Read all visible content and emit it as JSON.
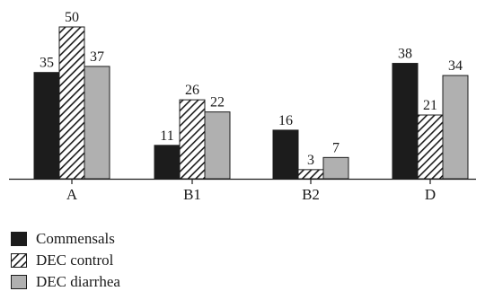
{
  "chart_data": {
    "type": "bar",
    "categories": [
      "A",
      "B1",
      "B2",
      "D"
    ],
    "series": [
      {
        "name": "Commensals",
        "values": [
          35,
          11,
          16,
          38
        ],
        "color": "#1c1c1c",
        "pattern": "solid"
      },
      {
        "name": "DEC control",
        "values": [
          50,
          26,
          3,
          21
        ],
        "color": "#ffffff",
        "pattern": "hatch"
      },
      {
        "name": "DEC diarrhea",
        "values": [
          37,
          22,
          7,
          34
        ],
        "color": "#b0b0b0",
        "pattern": "solid"
      }
    ],
    "ylim": [
      0,
      55
    ],
    "grid": false,
    "legend_position": "bottom-left",
    "data_labels": true
  }
}
